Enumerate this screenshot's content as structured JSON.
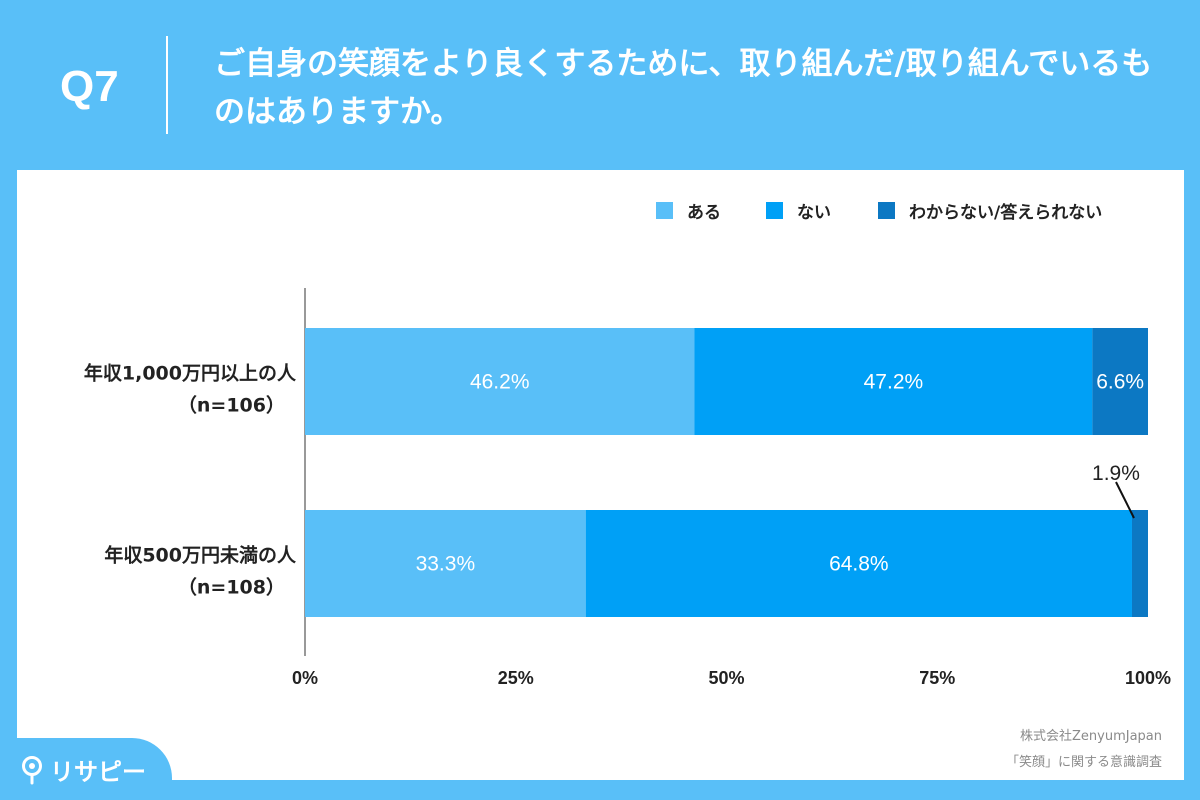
{
  "header": {
    "question_number": "Q7",
    "title": "ご自身の笑顔をより良くするために、取り組んだ/取り組んでいるものはありますか。"
  },
  "colors": {
    "background": "#59bff8",
    "series": [
      "#59bff8",
      "#00a0f6",
      "#0c78c3"
    ]
  },
  "chart_data": {
    "type": "bar",
    "orientation": "horizontal",
    "stacked": true,
    "categories": [
      {
        "name": "年収1,000万円以上の人",
        "n": "（n=106）"
      },
      {
        "name": "年収500万円未満の人",
        "n": "（n=108）"
      }
    ],
    "series": [
      {
        "name": "ある",
        "values": [
          46.2,
          33.3
        ],
        "labels": [
          "46.2%",
          "33.3%"
        ]
      },
      {
        "name": "ない",
        "values": [
          47.2,
          64.8
        ],
        "labels": [
          "47.2%",
          "64.8%"
        ]
      },
      {
        "name": "わからない/答えられない",
        "values": [
          6.6,
          1.9
        ],
        "labels": [
          "6.6%",
          "1.9%"
        ]
      }
    ],
    "xlim": [
      0,
      100
    ],
    "ticks": [
      "0%",
      "25%",
      "50%",
      "75%",
      "100%"
    ],
    "legend_position": "top-right",
    "grid": false
  },
  "source": {
    "line1": "株式会社ZenyumJapan",
    "line2": "「笑顔」に関する意識調査"
  },
  "logo": {
    "text": "リサピー",
    "icon": "location-pin-icon"
  }
}
